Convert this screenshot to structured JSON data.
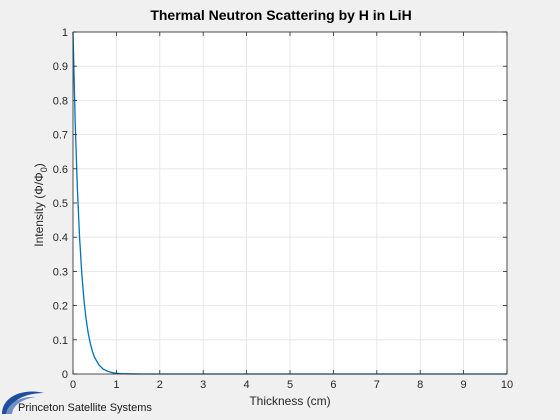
{
  "chart_data": {
    "type": "line",
    "title": "Thermal Neutron Scattering by H in LiH",
    "xlabel": "Thickness (cm)",
    "ylabel": "Intensity (Φ/Φ",
    "ylabel_sub": "0",
    "ylabel_close": ")",
    "xlim": [
      0,
      10
    ],
    "ylim": [
      0,
      1
    ],
    "xticks": [
      0,
      1,
      2,
      3,
      4,
      5,
      6,
      7,
      8,
      9,
      10
    ],
    "yticks": [
      0,
      0.1,
      0.2,
      0.3,
      0.4,
      0.5,
      0.6,
      0.7,
      0.8,
      0.9,
      1
    ],
    "grid": true,
    "series": [
      {
        "color": "#0072bd",
        "x": [
          0,
          0.05,
          0.1,
          0.15,
          0.2,
          0.25,
          0.3,
          0.35,
          0.4,
          0.45,
          0.5,
          0.6,
          0.7,
          0.8,
          0.9,
          1.0,
          1.1,
          1.2,
          1.4,
          1.6,
          1.8,
          2.0,
          3,
          4,
          5,
          6,
          7,
          8,
          9,
          10
        ],
        "y": [
          1.0,
          0.739,
          0.545,
          0.403,
          0.298,
          0.22,
          0.162,
          0.12,
          0.089,
          0.065,
          0.048,
          0.026,
          0.014,
          0.008,
          0.004,
          0.002,
          0.001,
          0.0007,
          0.0002,
          0.0001,
          0.0,
          0.0,
          0,
          0,
          0,
          0,
          0,
          0,
          0,
          0
        ]
      }
    ]
  },
  "logo": {
    "text": "Princeton Satellite Systems",
    "color": "#1f4e9c"
  }
}
